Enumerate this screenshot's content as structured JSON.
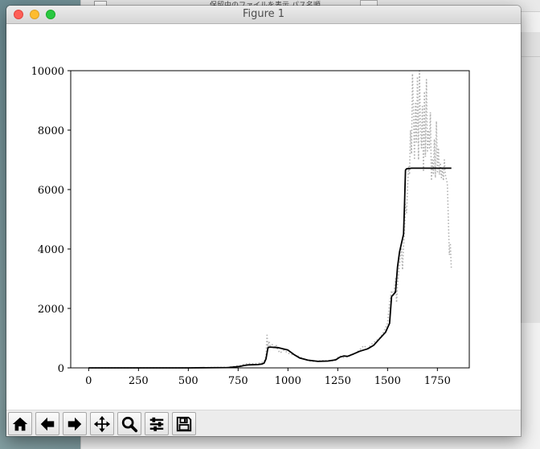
{
  "window": {
    "title": "Figure 1",
    "background_toolbar_text": "保留中のファイルを表示 パス名順"
  },
  "toolbar": {
    "buttons": [
      {
        "name": "home-button",
        "icon": "home-icon"
      },
      {
        "name": "back-button",
        "icon": "arrow-left-icon"
      },
      {
        "name": "forward-button",
        "icon": "arrow-right-icon"
      },
      {
        "name": "pan-button",
        "icon": "move-icon"
      },
      {
        "name": "zoom-button",
        "icon": "magnifier-icon"
      },
      {
        "name": "configure-subplots-button",
        "icon": "sliders-icon"
      },
      {
        "name": "save-button",
        "icon": "floppy-disk-icon"
      }
    ]
  },
  "chart_data": {
    "type": "line",
    "title": "",
    "xlabel": "",
    "ylabel": "",
    "xlim": [
      -90,
      1910
    ],
    "ylim": [
      0,
      10000
    ],
    "xticks": [
      0,
      250,
      500,
      750,
      1000,
      1250,
      1500,
      1750
    ],
    "xtick_labels": [
      "0",
      "250",
      "500",
      "750",
      "1000",
      "1250",
      "1500",
      "1750"
    ],
    "yticks": [
      0,
      2000,
      4000,
      6000,
      8000,
      10000
    ],
    "ytick_labels": [
      "0",
      "2000",
      "4000",
      "6000",
      "8000",
      "10000"
    ],
    "grid": false,
    "legend": "none",
    "series": [
      {
        "style": "dotted",
        "color": "#b0b0b0",
        "x": [
          0,
          500,
          700,
          760,
          780,
          800,
          820,
          850,
          880,
          890,
          895,
          900,
          905,
          910,
          920,
          930,
          940,
          950,
          960,
          980,
          1000,
          1020,
          1050,
          1080,
          1100,
          1120,
          1150,
          1180,
          1200,
          1220,
          1240,
          1260,
          1280,
          1300,
          1320,
          1340,
          1360,
          1380,
          1400,
          1420,
          1440,
          1460,
          1480,
          1500,
          1510,
          1520,
          1530,
          1540,
          1545,
          1550,
          1560,
          1570,
          1575,
          1580,
          1585,
          1590,
          1595,
          1600,
          1605,
          1610,
          1615,
          1620,
          1625,
          1630,
          1635,
          1640,
          1645,
          1650,
          1655,
          1660,
          1665,
          1670,
          1675,
          1680,
          1685,
          1690,
          1695,
          1700,
          1705,
          1710,
          1715,
          1720,
          1725,
          1730,
          1735,
          1740,
          1745,
          1750,
          1755,
          1760,
          1765,
          1770,
          1775,
          1780,
          1785,
          1790,
          1800,
          1810,
          1815,
          1820
        ],
        "y": [
          0,
          0,
          20,
          80,
          120,
          150,
          140,
          150,
          200,
          400,
          1100,
          700,
          900,
          750,
          800,
          650,
          780,
          600,
          500,
          600,
          500,
          450,
          400,
          300,
          250,
          220,
          230,
          250,
          240,
          230,
          300,
          400,
          350,
          380,
          430,
          500,
          600,
          750,
          650,
          800,
          900,
          1000,
          1200,
          1500,
          2200,
          2600,
          2400,
          3000,
          2200,
          2800,
          3500,
          4000,
          3300,
          4100,
          4600,
          5500,
          5200,
          6000,
          6800,
          6500,
          8000,
          7200,
          9900,
          8500,
          7000,
          8900,
          7600,
          9800,
          7000,
          10000,
          8200,
          7400,
          8800,
          6600,
          9300,
          7100,
          9700,
          7300,
          8000,
          7400,
          8600,
          6300,
          7000,
          6500,
          7700,
          6400,
          8300,
          6600,
          7400,
          6500,
          6900,
          6400,
          6700,
          6300,
          7000,
          6500,
          6200,
          3800,
          4200,
          3300
        ]
      },
      {
        "style": "solid",
        "color": "#000000",
        "x": [
          0,
          500,
          700,
          760,
          780,
          800,
          850,
          870,
          880,
          890,
          895,
          900,
          910,
          950,
          1000,
          1030,
          1060,
          1100,
          1150,
          1200,
          1240,
          1260,
          1280,
          1300,
          1330,
          1360,
          1400,
          1430,
          1460,
          1490,
          1510,
          1520,
          1540,
          1550,
          1560,
          1570,
          1580,
          1585,
          1590,
          1595,
          1600,
          1620,
          1700,
          1750,
          1800,
          1820
        ],
        "y": [
          0,
          0,
          10,
          50,
          80,
          100,
          110,
          130,
          160,
          300,
          500,
          680,
          700,
          680,
          600,
          450,
          330,
          260,
          220,
          230,
          270,
          360,
          400,
          390,
          470,
          560,
          640,
          760,
          980,
          1200,
          1500,
          2400,
          2550,
          3400,
          3900,
          4200,
          4500,
          5500,
          6650,
          6700,
          6700,
          6720,
          6720,
          6720,
          6720,
          6720
        ]
      }
    ]
  }
}
